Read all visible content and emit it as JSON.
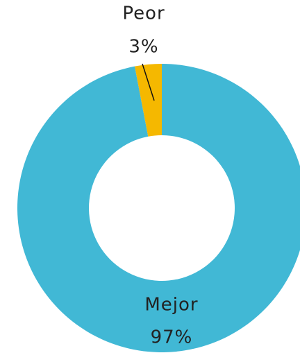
{
  "chart_data": {
    "type": "donut",
    "categories": [
      "Mejor",
      "Peor"
    ],
    "values": [
      97,
      3
    ],
    "value_labels": [
      "97%",
      "3%"
    ],
    "colors": [
      "#41b8d5",
      "#f5b800"
    ]
  }
}
